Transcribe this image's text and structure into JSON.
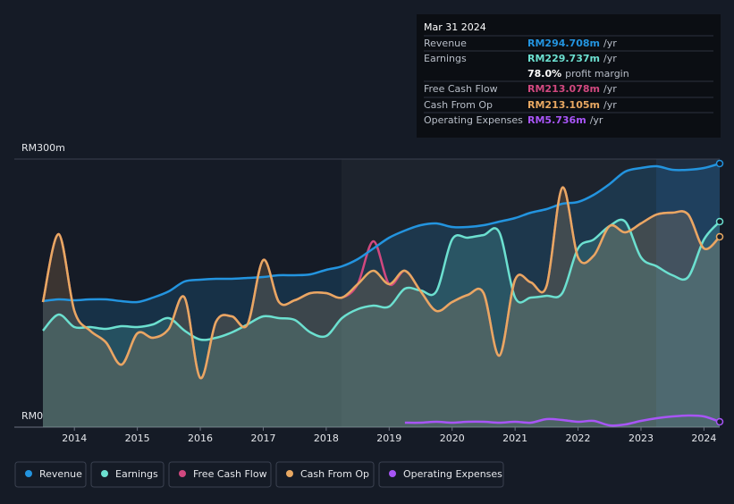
{
  "chart_data": {
    "type": "line",
    "x": [
      2013.5,
      2013.75,
      2014,
      2014.25,
      2014.5,
      2014.75,
      2015,
      2015.25,
      2015.5,
      2015.75,
      2016,
      2016.25,
      2016.5,
      2016.75,
      2017,
      2017.25,
      2017.5,
      2017.75,
      2018,
      2018.25,
      2018.5,
      2018.75,
      2019,
      2019.25,
      2019.5,
      2019.75,
      2020,
      2020.25,
      2020.5,
      2020.75,
      2021,
      2021.25,
      2021.5,
      2021.75,
      2022,
      2022.25,
      2022.5,
      2022.75,
      2023,
      2023.25,
      2023.5,
      2023.75,
      2024,
      2024.25
    ],
    "series": [
      {
        "name": "Revenue",
        "color": "#2394df",
        "fill": true,
        "values": [
          141,
          143,
          142,
          143,
          143,
          141,
          140,
          145,
          152,
          163,
          165,
          166,
          166,
          167,
          168,
          170,
          170,
          171,
          176,
          180,
          188,
          200,
          212,
          220,
          226,
          228,
          224,
          224,
          226,
          230,
          234,
          240,
          244,
          250,
          252,
          260,
          272,
          286,
          290,
          292,
          288,
          288,
          290,
          295
        ]
      },
      {
        "name": "Earnings",
        "color": "#6ce0d0",
        "fill": true,
        "values": [
          108,
          126,
          112,
          112,
          110,
          113,
          112,
          115,
          122,
          108,
          98,
          100,
          106,
          115,
          124,
          122,
          120,
          106,
          102,
          122,
          132,
          136,
          135,
          155,
          153,
          152,
          210,
          212,
          215,
          218,
          145,
          145,
          147,
          150,
          200,
          210,
          225,
          230,
          190,
          180,
          170,
          168,
          210,
          230
        ]
      },
      {
        "name": "Free Cash Flow",
        "color": "#d1487f",
        "fill": false,
        "values": [
          140,
          216,
          130,
          108,
          95,
          70,
          105,
          100,
          110,
          145,
          55,
          118,
          124,
          115,
          187,
          140,
          142,
          150,
          150,
          145,
          160,
          208,
          160,
          175,
          152,
          130,
          140,
          148,
          150,
          80,
          165,
          162,
          158,
          268,
          190,
          192,
          225,
          218,
          228,
          238,
          240,
          238,
          200,
          213
        ]
      },
      {
        "name": "Cash From Op",
        "color": "#e8a862",
        "fill": true,
        "values": [
          140,
          216,
          130,
          108,
          95,
          70,
          105,
          100,
          110,
          145,
          55,
          118,
          124,
          115,
          187,
          140,
          142,
          150,
          150,
          145,
          160,
          175,
          160,
          175,
          152,
          130,
          140,
          148,
          150,
          80,
          165,
          162,
          158,
          268,
          190,
          192,
          225,
          218,
          228,
          238,
          240,
          238,
          200,
          213
        ]
      },
      {
        "name": "Operating Expenses",
        "color": "#a855f7",
        "fill": false,
        "values": [
          null,
          null,
          null,
          null,
          null,
          null,
          null,
          null,
          null,
          null,
          null,
          null,
          null,
          null,
          null,
          null,
          null,
          null,
          null,
          null,
          null,
          null,
          null,
          5,
          5,
          6,
          5,
          6,
          6,
          5,
          6,
          5,
          9,
          8,
          6,
          7,
          2,
          3,
          7,
          10,
          12,
          13,
          12,
          6
        ]
      }
    ],
    "xlim": [
      2013.02,
      2024.34
    ],
    "ylim": [
      0,
      300
    ],
    "xticks": [
      2014,
      2015,
      2016,
      2017,
      2018,
      2019,
      2020,
      2021,
      2022,
      2023,
      2024
    ],
    "yticks": [
      {
        "value": 0,
        "label": "RM0"
      },
      {
        "value": 300,
        "label": "RM300m"
      }
    ],
    "tooltip": {
      "date": "Mar 31 2024",
      "rows": [
        {
          "label": "Revenue",
          "value": "RM294.708m",
          "unit": "/yr",
          "color": "#2394df"
        },
        {
          "label": "Earnings",
          "value": "RM229.737m",
          "unit": "/yr",
          "color": "#6ce0d0"
        },
        {
          "label": "",
          "value": "78.0%",
          "unit": "profit margin",
          "color": "#ffffff"
        },
        {
          "label": "Free Cash Flow",
          "value": "RM213.078m",
          "unit": "/yr",
          "color": "#d1487f"
        },
        {
          "label": "Cash From Op",
          "value": "RM213.105m",
          "unit": "/yr",
          "color": "#e8a862"
        },
        {
          "label": "Operating Expenses",
          "value": "RM5.736m",
          "unit": "/yr",
          "color": "#a855f7"
        }
      ]
    }
  }
}
